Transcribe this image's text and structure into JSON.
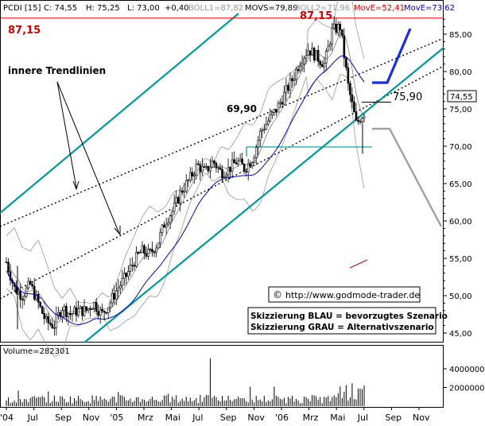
{
  "header": {
    "ticker": "PCDI [15]",
    "c": "C: 74,55",
    "h": "H: 75,25",
    "l": "L: 73,00",
    "change": "+0,40",
    "boll1": "BOLL1=87,82",
    "movs": "MOVS=79,89",
    "boll2": "BOLL2=71,96",
    "move_red": "MovE=52,41",
    "move_blue": "MovE=73,62"
  },
  "annotations": {
    "high_left": "87,15",
    "high_top": "87,15",
    "level_699": "69,90",
    "level_759": "75,90",
    "trendlines": "innere Trendlinien",
    "website": "http://www.godmode-trader.de",
    "copyright": "©",
    "legend_blue": "Skizzierung BLAU = bevorzugtes Szenario",
    "legend_grey": "Skizzierung GRAU = Alternativszenario",
    "price_label": "74,55"
  },
  "volume": {
    "label": "Volume=282301"
  },
  "colors": {
    "candle": "#000000",
    "teal_channel": "#009999",
    "ma_blue": "#0000cc",
    "bollinger": "#999999",
    "resistance_red": "#ff0000",
    "label_red": "#cc0000",
    "blue_scenario": "#1a2ee6",
    "grey_scenario": "#a0a0a0"
  },
  "chart_data": {
    "type": "candlestick",
    "y_axis": {
      "ticks": [
        "85,00",
        "80,00",
        "75,00",
        "70,00",
        "65,00",
        "60,00",
        "55,00",
        "50,00",
        "45,00"
      ],
      "tick_values": [
        85,
        80,
        75,
        70,
        65,
        60,
        55,
        50,
        45
      ]
    },
    "x_axis": {
      "labels": [
        "'04",
        "Jul",
        "Sep",
        "Nov",
        "'05",
        "Mrz",
        "Mai",
        "Jul",
        "Sep",
        "Nov",
        "'06",
        "Mrz",
        "Mai",
        "Jul",
        "Sep",
        "Nov"
      ]
    },
    "volume_axis": {
      "ticks": [
        "4000000",
        "2000000"
      ],
      "tick_values": [
        4000000,
        2000000
      ]
    },
    "price_path": [
      54.5,
      51,
      50,
      51.5,
      49,
      46.5,
      46,
      48.5,
      47.5,
      48,
      48,
      49,
      47.5,
      49,
      51,
      52.5,
      54.5,
      56,
      55.5,
      57,
      60,
      61.5,
      64,
      65.5,
      67.5,
      66.5,
      68,
      66.5,
      67,
      68,
      67,
      68.5,
      72,
      73.5,
      75,
      77,
      79,
      81.5,
      83,
      82,
      81,
      85.5,
      86,
      78,
      73,
      74.55
    ],
    "levels": {
      "resistance": 87.15,
      "support": 69.9,
      "last": 74.55,
      "target_blue": 75.9
    },
    "scenario_blue": [
      [
        76.5,
        76.5
      ],
      [
        76.5,
        85.8
      ]
    ],
    "scenario_grey": [
      [
        69.6,
        69.6
      ],
      [
        69.6,
        56.5
      ]
    ]
  }
}
